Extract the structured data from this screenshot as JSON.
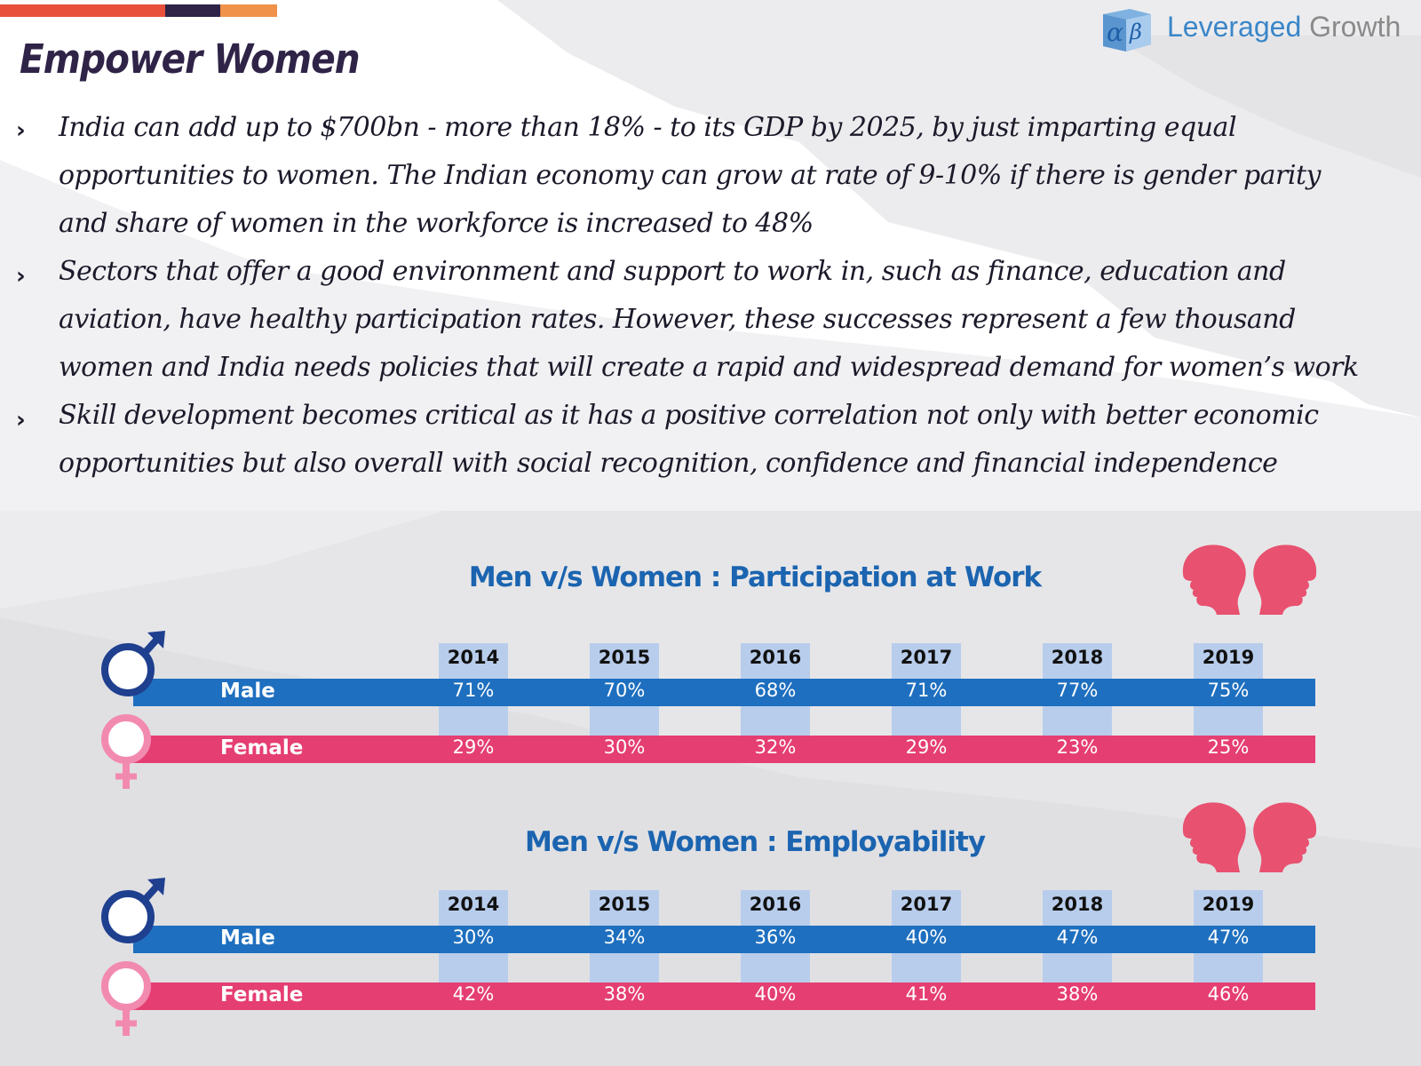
{
  "brand": {
    "name_part1": "Leveraged",
    "name_part2": "Growth",
    "colors": {
      "accent_blue": "#1e6fbf",
      "accent_pink": "#e53e72",
      "title_purple": "#2f2347"
    }
  },
  "topbar_colors": [
    "#e8503c",
    "#e8503c",
    "#e8503c",
    "#2f2347",
    "#f0924a"
  ],
  "page_title": "Empower Women",
  "bullets": [
    {
      "lines": [
        "India can add up to $700bn - more than 18% - to its GDP by 2025, by just imparting equal",
        "opportunities to women. The Indian economy can grow at rate of 9-10% if there is gender parity",
        "and share of women in the workforce is increased to 48%"
      ]
    },
    {
      "lines": [
        "Sectors that offer a good environment and support to work in, such as finance, education and",
        "aviation, have healthy participation rates. However, these successes represent a few thousand",
        "women and India needs policies that will create a rapid and widespread demand for women’s work"
      ]
    },
    {
      "lines": [
        "Skill development becomes critical as it has a positive correlation not only with better economic",
        "opportunities but also overall with social recognition, confidence and financial independence"
      ]
    }
  ],
  "chart_data": [
    {
      "type": "table",
      "title": "Men v/s Women : Participation at Work",
      "categories": [
        "2014",
        "2015",
        "2016",
        "2017",
        "2018",
        "2019"
      ],
      "series": [
        {
          "name": "Male",
          "values": [
            "71%",
            "70%",
            "68%",
            "71%",
            "77%",
            "75%"
          ],
          "color": "#1e6fbf"
        },
        {
          "name": "Female",
          "values": [
            "29%",
            "30%",
            "32%",
            "29%",
            "23%",
            "25%"
          ],
          "color": "#e53e72"
        }
      ]
    },
    {
      "type": "table",
      "title": "Men v/s Women : Employability",
      "categories": [
        "2014",
        "2015",
        "2016",
        "2017",
        "2018",
        "2019"
      ],
      "series": [
        {
          "name": "Male",
          "values": [
            "30%",
            "34%",
            "36%",
            "40%",
            "47%",
            "47%"
          ],
          "color": "#1e6fbf"
        },
        {
          "name": "Female",
          "values": [
            "42%",
            "38%",
            "40%",
            "41%",
            "38%",
            "46%"
          ],
          "color": "#e53e72"
        }
      ]
    }
  ],
  "icons": {
    "male_symbol": "male-symbol-icon",
    "female_symbol": "female-symbol-icon",
    "heads": "couple-heads-icon",
    "bullet": "chevron-right-icon",
    "logo": "alpha-beta-cube-logo"
  }
}
